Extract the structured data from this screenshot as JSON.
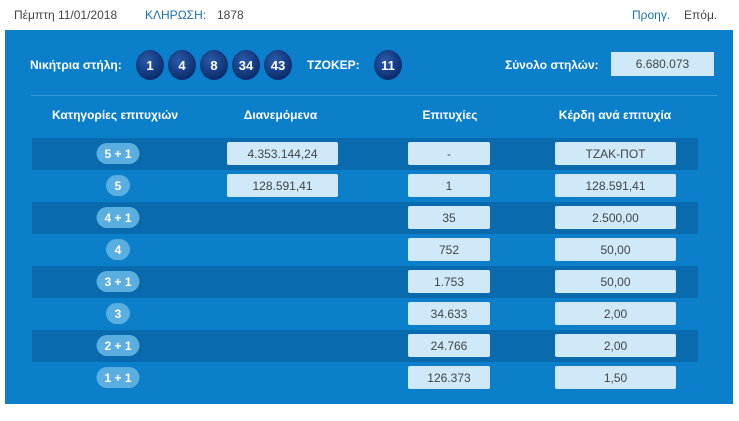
{
  "header": {
    "date": "Πέμπτη 11/01/2018",
    "draw_label": "ΚΛΗΡΩΣΗ:",
    "draw_number": "1878",
    "prev": "Προηγ.",
    "next": "Επόμ."
  },
  "draw": {
    "winning_label": "Νικήτρια στήλη:",
    "numbers": [
      "1",
      "4",
      "8",
      "34",
      "43"
    ],
    "joker_label": "ΤΖΟΚΕΡ:",
    "joker": "11",
    "total_label": "Σύνολο στηλών:",
    "total": "6.680.073"
  },
  "table": {
    "headers": [
      "Κατηγορίες επιτυχιών",
      "Διανεμόμενα",
      "Επιτυχίες",
      "Κέρδη ανά επιτυχία"
    ],
    "rows": [
      {
        "category": "5 + 1",
        "distributed": "4.353.144,24",
        "winners": "-",
        "prize": "ΤΖΑΚ-ΠΟΤ"
      },
      {
        "category": "5",
        "distributed": "128.591,41",
        "winners": "1",
        "prize": "128.591,41"
      },
      {
        "category": "4 + 1",
        "winners": "35",
        "prize": "2.500,00"
      },
      {
        "category": "4",
        "winners": "752",
        "prize": "50,00"
      },
      {
        "category": "3 + 1",
        "winners": "1.753",
        "prize": "50,00"
      },
      {
        "category": "3",
        "winners": "34.633",
        "prize": "2,00"
      },
      {
        "category": "2 + 1",
        "winners": "24.766",
        "prize": "2,00"
      },
      {
        "category": "1 + 1",
        "winners": "126.373",
        "prize": "1,50"
      }
    ]
  }
}
